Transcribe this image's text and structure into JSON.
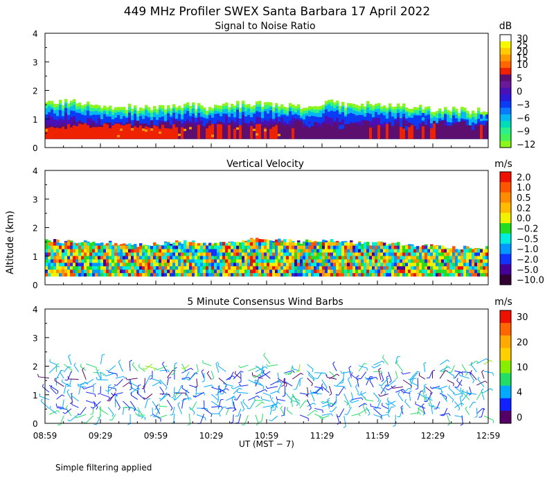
{
  "chart_data": {
    "type": "heatmap",
    "title": "449 MHz Profiler SWEX Santa Barbara 17 April 2022",
    "ylabel": "Altitude (km)",
    "xlabel": "UT   (MST − 7)",
    "footnote": "Simple filtering applied",
    "x_ticks": [
      "08:59",
      "09:29",
      "09:59",
      "10:29",
      "10:59",
      "11:29",
      "11:59",
      "12:29",
      "12:59"
    ],
    "y_ticks": [
      "0",
      "1",
      "2",
      "3",
      "4"
    ],
    "ylim": [
      0,
      4
    ],
    "panels": [
      {
        "subtitle": "Signal to Noise Ratio",
        "unit": "dB",
        "colorbar": [
          {
            "label": "30",
            "color": "#ffffff"
          },
          {
            "label": "25",
            "color": "#f7f700"
          },
          {
            "label": "20",
            "color": "#ffcc00"
          },
          {
            "label": "15",
            "color": "#ff9900"
          },
          {
            "label": "10",
            "color": "#ff6600"
          },
          {
            "label": "",
            "color": "#ee2200"
          },
          {
            "label": "5",
            "color": "#5c0f6e"
          },
          {
            "label": "",
            "color": "#6a1a99"
          },
          {
            "label": "0",
            "color": "#4a0fb5"
          },
          {
            "label": "",
            "color": "#2a1ad8"
          },
          {
            "label": "−3",
            "color": "#0b3cf5"
          },
          {
            "label": "",
            "color": "#0a7aff"
          },
          {
            "label": "−6",
            "color": "#05b8f2"
          },
          {
            "label": "",
            "color": "#00dcb8"
          },
          {
            "label": "−9",
            "color": "#2ef08a"
          },
          {
            "label": "",
            "color": "#44f25a"
          },
          {
            "label": "−12",
            "color": "#8cf51e"
          }
        ]
      },
      {
        "subtitle": "Vertical Velocity",
        "unit": "m/s",
        "colorbar": [
          {
            "label": "2.0",
            "color": "#ee1100"
          },
          {
            "label": "1.0",
            "color": "#ff5500"
          },
          {
            "label": "0.5",
            "color": "#ff8c00"
          },
          {
            "label": "0.2",
            "color": "#ffbb00"
          },
          {
            "label": "0.0",
            "color": "#f2f200"
          },
          {
            "label": "−0.2",
            "color": "#22dd22"
          },
          {
            "label": "−0.5",
            "color": "#00eedd"
          },
          {
            "label": "−1.0",
            "color": "#0099ff"
          },
          {
            "label": "−2.0",
            "color": "#1133ff"
          },
          {
            "label": "−5.0",
            "color": "#440099"
          },
          {
            "label": "−10.0",
            "color": "#330033"
          }
        ]
      },
      {
        "subtitle": "5 Minute Consensus Wind Barbs",
        "unit": "m/s",
        "colorbar": [
          {
            "label": "30",
            "color": "#ee1100"
          },
          {
            "label": "",
            "color": "#ff6600"
          },
          {
            "label": "20",
            "color": "#ffaa00"
          },
          {
            "label": "",
            "color": "#ffd000"
          },
          {
            "label": "10",
            "color": "#88ee00"
          },
          {
            "label": "",
            "color": "#22dd66"
          },
          {
            "label": "4",
            "color": "#00aaff"
          },
          {
            "label": "",
            "color": "#1122ff"
          },
          {
            "label": "0",
            "color": "#550066"
          }
        ]
      }
    ],
    "snr_profile": {
      "description": "approximate height (km) of usable signal vs time",
      "top_km": [
        1.55,
        1.6,
        1.5,
        1.45,
        1.4,
        1.45,
        1.5,
        1.4,
        1.5,
        1.55,
        1.5,
        1.45,
        1.6,
        1.5,
        1.55,
        1.45,
        1.4,
        1.35,
        1.3,
        1.3
      ]
    },
    "velocity_profile": {
      "top_km": [
        1.55,
        1.5,
        1.5,
        1.45,
        1.4,
        1.45,
        1.5,
        1.45,
        1.5,
        1.6,
        1.55,
        1.5,
        1.55,
        1.5,
        1.45,
        1.45,
        1.4,
        1.35,
        1.3,
        1.3
      ]
    },
    "wind_barbs": {
      "description": "5-minute consensus winds, weak (0-10 m/s) throughout, heights 0.3-2.1 km",
      "heights_km": [
        0.3,
        0.55,
        0.8,
        1.05,
        1.3,
        1.55,
        1.8,
        2.05
      ],
      "typical_speed_ms": [
        6,
        5,
        5,
        4,
        4,
        3,
        5,
        8
      ]
    }
  }
}
